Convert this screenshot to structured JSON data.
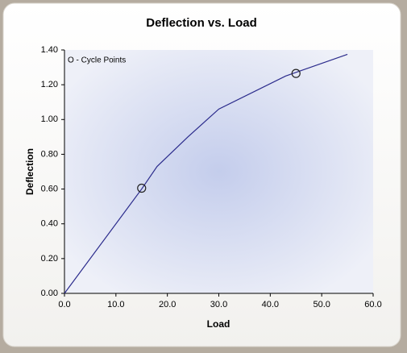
{
  "chart_data": {
    "type": "line",
    "title": "Deflection vs. Load",
    "xlabel": "Load",
    "ylabel": "Deflection",
    "annotation": "O - Cycle Points",
    "xlim": [
      0,
      60
    ],
    "ylim": [
      0,
      1.4
    ],
    "xticks": [
      {
        "value": 0,
        "label": "0.0"
      },
      {
        "value": 10,
        "label": "10.0"
      },
      {
        "value": 20,
        "label": "20.0"
      },
      {
        "value": 30,
        "label": "30.0"
      },
      {
        "value": 40,
        "label": "40.0"
      },
      {
        "value": 50,
        "label": "50.0"
      },
      {
        "value": 60,
        "label": "60.0"
      }
    ],
    "yticks": [
      {
        "value": 0,
        "label": "0.00"
      },
      {
        "value": 0.2,
        "label": "0.20"
      },
      {
        "value": 0.4,
        "label": "0.40"
      },
      {
        "value": 0.6,
        "label": "0.60"
      },
      {
        "value": 0.8,
        "label": "0.80"
      },
      {
        "value": 1.0,
        "label": "1.00"
      },
      {
        "value": 1.2,
        "label": "1.20"
      },
      {
        "value": 1.4,
        "label": "1.40"
      }
    ],
    "grid": false,
    "series": [
      {
        "color": "#2b2b8c",
        "marker": false,
        "x": [
          0,
          15,
          18,
          24,
          30,
          43,
          55
        ],
        "values": [
          0,
          0.6,
          0.73,
          0.9,
          1.06,
          1.25,
          1.375
        ]
      },
      {
        "color": "#222222",
        "marker": true,
        "line": false,
        "x": [
          15,
          45
        ],
        "values": [
          0.605,
          1.265
        ]
      }
    ]
  }
}
